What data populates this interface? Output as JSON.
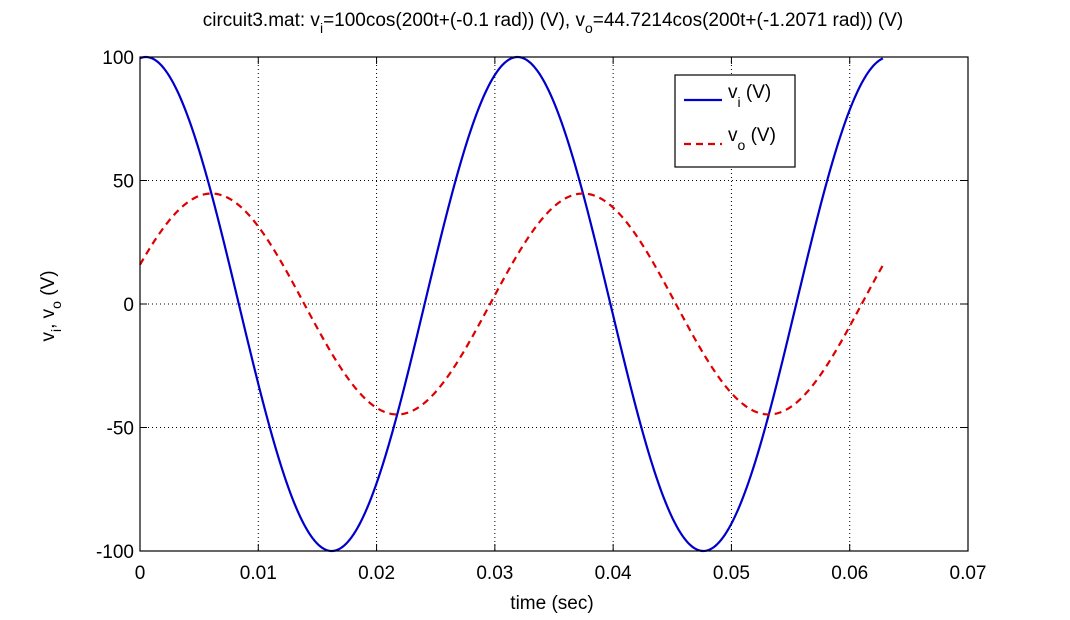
{
  "chart_data": {
    "type": "line",
    "title": {
      "prefix": "circuit3.mat: v",
      "sub1": "i",
      "mid": "=100cos(200t+(-0.1 rad)) (V), v",
      "sub2": "o",
      "suffix": "=44.7214cos(200t+(-1.2071 rad)) (V)"
    },
    "xlabel": "time (sec)",
    "ylabel": {
      "v": "v",
      "sub_i": "i",
      "sep": ", v",
      "sub_o": "o",
      "unit": " (V)"
    },
    "xlim": [
      0,
      0.07
    ],
    "ylim": [
      -100,
      100
    ],
    "x_ticks": [
      0,
      0.01,
      0.02,
      0.03,
      0.04,
      0.05,
      0.06,
      0.07
    ],
    "x_tick_labels": [
      "0",
      "0.01",
      "0.02",
      "0.03",
      "0.04",
      "0.05",
      "0.06",
      "0.07"
    ],
    "y_ticks": [
      -100,
      -50,
      0,
      50,
      100
    ],
    "y_tick_labels": [
      "-100",
      "-50",
      "0",
      "50",
      "100"
    ],
    "grid": true,
    "legend_position": "top-right",
    "x_range": [
      0,
      0.0628
    ],
    "series": [
      {
        "label_main": "v",
        "label_sub": "i",
        "label_unit": " (V)",
        "amplitude": 100,
        "omega": 200,
        "phase": -0.1,
        "color": "#0000cc",
        "style": "solid"
      },
      {
        "label_main": "v",
        "label_sub": "o",
        "label_unit": " (V)",
        "amplitude": 44.7214,
        "omega": 200,
        "phase": -1.2071,
        "color": "#dd0000",
        "style": "dashed"
      }
    ]
  }
}
